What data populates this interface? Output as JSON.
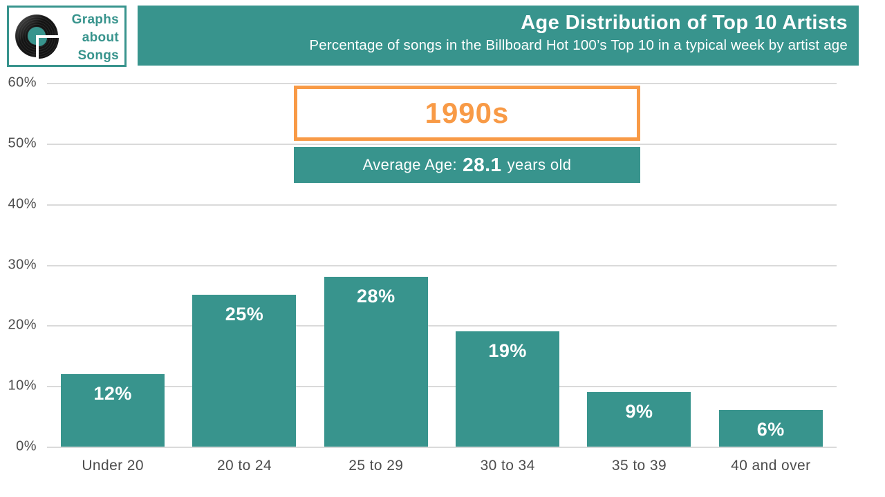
{
  "logo": {
    "line1": "Graphs",
    "line2": "about",
    "line3": "Songs"
  },
  "header": {
    "title": "Age Distribution of Top 10 Artists",
    "subtitle": "Percentage of songs in the Billboard Hot 100’s Top 10 in a typical week by artist age"
  },
  "callout": {
    "decade": "1990s",
    "avg_prefix": "Average Age:",
    "avg_value": "28.1",
    "avg_suffix": "years old"
  },
  "colors": {
    "teal": "#38948D",
    "orange": "#F89A46",
    "gridline": "#DADADA",
    "axis_text": "#4D4D4D",
    "bar_label_text": "#FFFFFF"
  },
  "chart_data": {
    "type": "bar",
    "title": "Age Distribution of Top 10 Artists",
    "subtitle": "Percentage of songs in the Billboard Hot 100’s Top 10 in a typical week by artist age",
    "categories": [
      "Under 20",
      "20 to 24",
      "25 to 29",
      "30 to 34",
      "35 to 39",
      "40 and over"
    ],
    "values": [
      12,
      25,
      28,
      19,
      9,
      6
    ],
    "value_labels": [
      "12%",
      "25%",
      "28%",
      "19%",
      "9%",
      "6%"
    ],
    "y_ticks": [
      "60%",
      "50%",
      "40%",
      "30%",
      "20%",
      "10%",
      "0%"
    ],
    "ylim": [
      0,
      60
    ],
    "y_tick_interval": 10,
    "grid": true,
    "legend": false,
    "bar_color": "#38948D",
    "annotations": {
      "decade": "1990s",
      "average_age_text": "Average Age: 28.1 years old"
    }
  }
}
